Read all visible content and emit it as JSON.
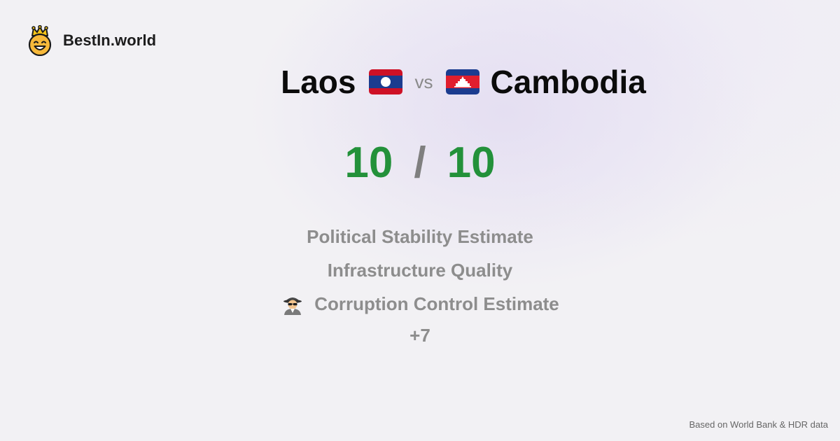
{
  "brand": {
    "name": "BestIn.world",
    "logo_icon": "crowned-smiley-icon"
  },
  "comparison": {
    "left_country": "Laos",
    "left_flag_icon": "laos-flag-icon",
    "vs_label": "vs",
    "right_country": "Cambodia",
    "right_flag_icon": "cambodia-flag-icon"
  },
  "score": {
    "left": "10",
    "separator": "/",
    "right": "10",
    "color": "#23913a"
  },
  "metrics": [
    {
      "label": "Political Stability Estimate"
    },
    {
      "label": "Infrastructure Quality"
    },
    {
      "label": "Corruption Control Estimate",
      "icon": "spy-detective-icon"
    }
  ],
  "more_label": "+7",
  "footer": {
    "source": "Based on World Bank & HDR data"
  }
}
